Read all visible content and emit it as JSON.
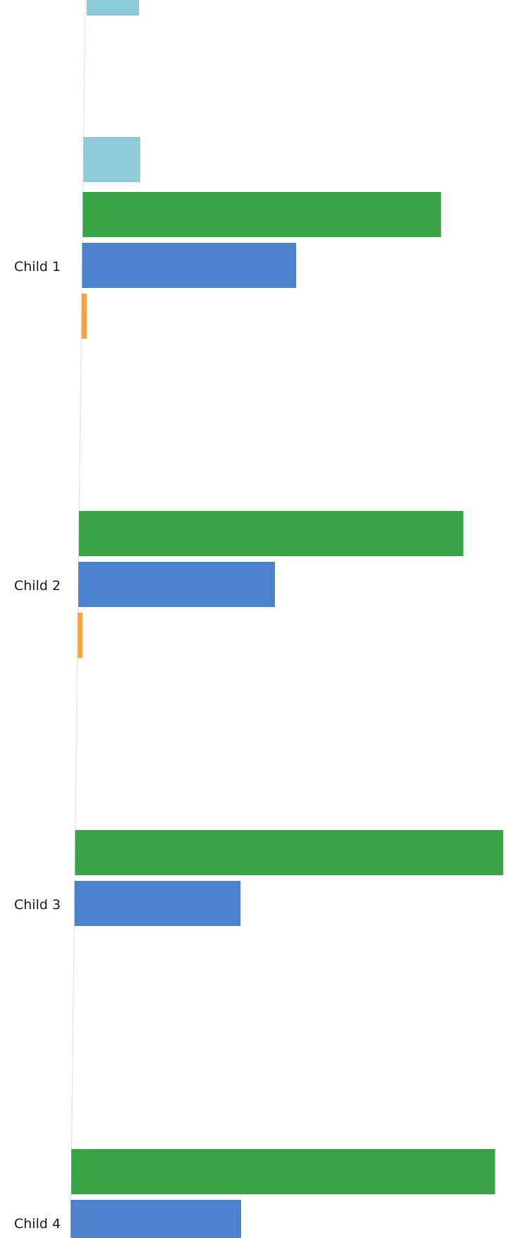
{
  "chart_data": {
    "type": "bar",
    "orientation": "horizontal",
    "categories": [
      "Child 1",
      "Child 2",
      "Child 3",
      "Child 4"
    ],
    "series": [
      {
        "color": "#8ecad6",
        "values": [
          13,
          null,
          null,
          null
        ]
      },
      {
        "color": "#3aa346",
        "values": [
          82,
          88,
          98,
          97
        ]
      },
      {
        "color": "#4a82cc",
        "values": [
          49,
          45,
          38,
          39
        ]
      },
      {
        "color": "#f4a444",
        "values": [
          1.2,
          0.8,
          null,
          null
        ]
      }
    ],
    "note": "partial view; axis, title and legend not visible"
  }
}
